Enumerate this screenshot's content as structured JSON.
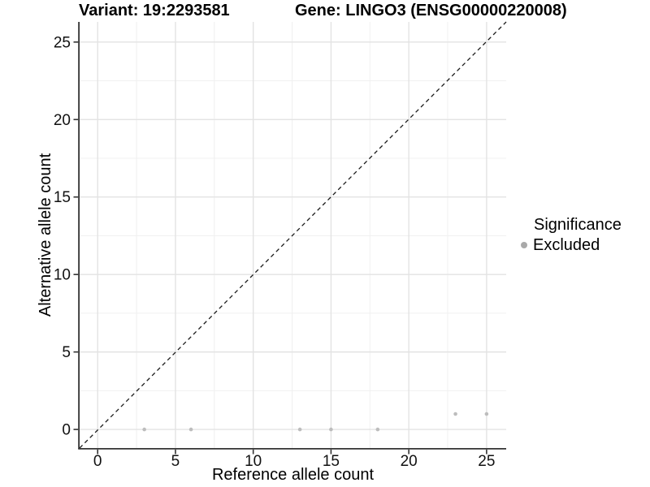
{
  "header": {
    "title_left": "Variant: 19:2293581",
    "title_right": "Gene: LINGO3 (ENSG00000220008)"
  },
  "legend": {
    "title": "Significance",
    "items": [
      {
        "label": "Excluded",
        "color": "#a9a9a9"
      }
    ]
  },
  "chart_data": {
    "type": "scatter",
    "title": "Variant: 19:2293581    Gene: LINGO3 (ENSG00000220008)",
    "xlabel": "Reference allele count",
    "ylabel": "Alternative allele count",
    "xlim": [
      -1.16,
      26.26
    ],
    "ylim": [
      -1.2,
      26.3
    ],
    "x_ticks": [
      0,
      5,
      10,
      15,
      20,
      25
    ],
    "y_ticks": [
      0,
      5,
      10,
      15,
      20,
      25
    ],
    "x_minor_ticks": [
      2.5,
      7.5,
      12.5,
      17.5,
      22.5
    ],
    "y_minor_ticks": [
      2.5,
      7.5,
      12.5,
      17.5,
      22.5
    ],
    "grid": "major+minor",
    "legend_position": "right",
    "legend_title": "Significance",
    "series": [
      {
        "name": "Excluded",
        "significance": "Excluded",
        "color": "#bdbdbd",
        "points": [
          [
            3,
            0
          ],
          [
            6,
            0
          ],
          [
            13,
            0
          ],
          [
            15,
            0
          ],
          [
            18,
            0
          ],
          [
            23,
            1
          ],
          [
            25,
            1
          ]
        ]
      }
    ],
    "reference_line": {
      "kind": "identity y=x",
      "style": "dashed",
      "color": "#1a1a1a"
    },
    "style": {
      "grid_major_color": "#e3e3e3",
      "grid_minor_color": "#f0f0f0",
      "axis_line_color": "#333333",
      "tick_color": "#333333",
      "tick_label_color": "#111111",
      "axis_title_color": "#000000"
    }
  }
}
